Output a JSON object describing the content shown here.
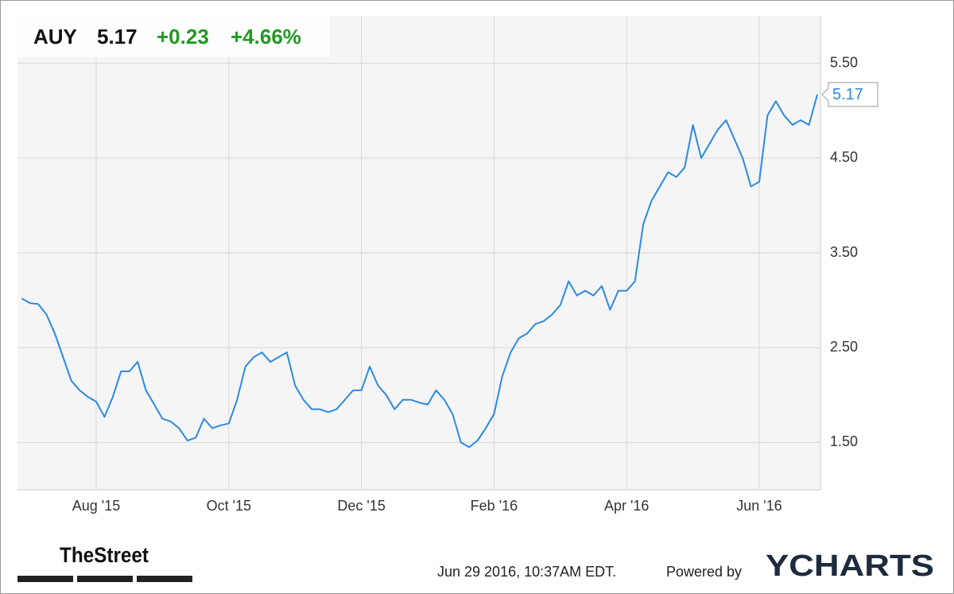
{
  "chart_data": {
    "type": "line",
    "ticker": "AUY",
    "price": 5.17,
    "change": "+0.23",
    "change_percent": "+4.66%",
    "categories": [
      null,
      null,
      null,
      null,
      null,
      null,
      null,
      null,
      null,
      "Aug '15",
      null,
      null,
      null,
      null,
      null,
      null,
      null,
      null,
      null,
      null,
      null,
      null,
      null,
      null,
      null,
      "Oct '15",
      null,
      null,
      null,
      null,
      null,
      null,
      null,
      null,
      null,
      null,
      null,
      null,
      null,
      null,
      null,
      "Dec '15",
      null,
      null,
      null,
      null,
      null,
      null,
      null,
      null,
      null,
      null,
      null,
      null,
      null,
      null,
      null,
      "Feb '16",
      null,
      null,
      null,
      null,
      null,
      null,
      null,
      null,
      null,
      null,
      null,
      null,
      null,
      null,
      null,
      "Apr '16",
      null,
      null,
      null,
      null,
      null,
      null,
      null,
      null,
      null,
      null,
      null,
      null,
      null,
      null,
      null,
      "Jun '16",
      null,
      null,
      null,
      null,
      null,
      null,
      null
    ],
    "values": [
      3.02,
      2.97,
      2.96,
      2.85,
      2.65,
      2.4,
      2.15,
      2.05,
      1.98,
      1.93,
      1.77,
      1.98,
      2.25,
      2.25,
      2.35,
      2.05,
      1.9,
      1.75,
      1.72,
      1.65,
      1.52,
      1.55,
      1.75,
      1.65,
      1.68,
      1.7,
      1.95,
      2.3,
      2.4,
      2.45,
      2.35,
      2.4,
      2.45,
      2.1,
      1.95,
      1.85,
      1.85,
      1.82,
      1.85,
      1.95,
      2.05,
      2.05,
      2.3,
      2.1,
      2.0,
      1.85,
      1.95,
      1.95,
      1.92,
      1.9,
      2.05,
      1.95,
      1.8,
      1.5,
      1.45,
      1.52,
      1.65,
      1.8,
      2.2,
      2.45,
      2.6,
      2.65,
      2.75,
      2.78,
      2.85,
      2.95,
      3.2,
      3.05,
      3.1,
      3.05,
      3.15,
      2.9,
      3.1,
      3.1,
      3.2,
      3.8,
      4.05,
      4.2,
      4.35,
      4.3,
      4.4,
      4.85,
      4.5,
      4.65,
      4.8,
      4.9,
      4.7,
      4.5,
      4.2,
      4.25,
      4.95,
      5.1,
      4.95,
      4.85,
      4.9,
      4.85,
      5.17
    ],
    "color": "#2b8ae2",
    "ylim": [
      1,
      6
    ],
    "yticks": [
      {
        "value": 1.5,
        "label": "1.50"
      },
      {
        "value": 2.5,
        "label": "2.50"
      },
      {
        "value": 3.5,
        "label": "3.50"
      },
      {
        "value": 4.5,
        "label": "4.50"
      },
      {
        "value": 5.5,
        "label": "5.50"
      }
    ],
    "grid": true,
    "y_axis_side": "right"
  },
  "footer": {
    "brand": "TheStreet",
    "timestamp": "Jun 29 2016, 10:37AM EDT.",
    "powered_by": "Powered by",
    "provider": "YCHARTS"
  }
}
